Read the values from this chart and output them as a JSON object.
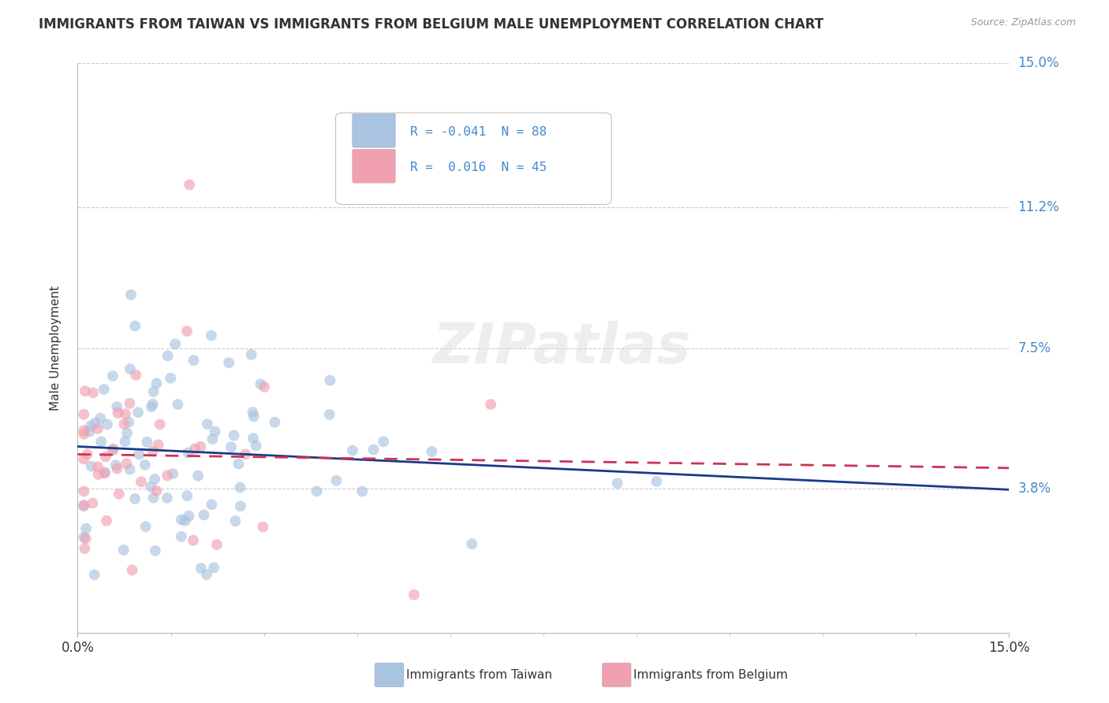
{
  "title": "IMMIGRANTS FROM TAIWAN VS IMMIGRANTS FROM BELGIUM MALE UNEMPLOYMENT CORRELATION CHART",
  "source": "Source: ZipAtlas.com",
  "ylabel": "Male Unemployment",
  "x_min": 0.0,
  "x_max": 0.15,
  "y_min": 0.0,
  "y_max": 0.15,
  "y_ticks": [
    0.038,
    0.075,
    0.112,
    0.15
  ],
  "y_tick_labels": [
    "3.8%",
    "7.5%",
    "11.2%",
    "15.0%"
  ],
  "legend_taiwan": "Immigrants from Taiwan",
  "legend_belgium": "Immigrants from Belgium",
  "r_taiwan": -0.041,
  "n_taiwan": 88,
  "r_belgium": 0.016,
  "n_belgium": 45,
  "color_taiwan": "#a8c4e0",
  "color_belgium": "#f0a0b0",
  "line_color_taiwan": "#1a3a8a",
  "line_color_belgium": "#cc3355",
  "watermark_text": "ZIPatlas",
  "background_color": "#ffffff",
  "grid_color": "#cccccc",
  "title_color": "#333333",
  "source_color": "#999999",
  "tick_label_color": "#4488cc",
  "axis_tick_color": "#333333"
}
